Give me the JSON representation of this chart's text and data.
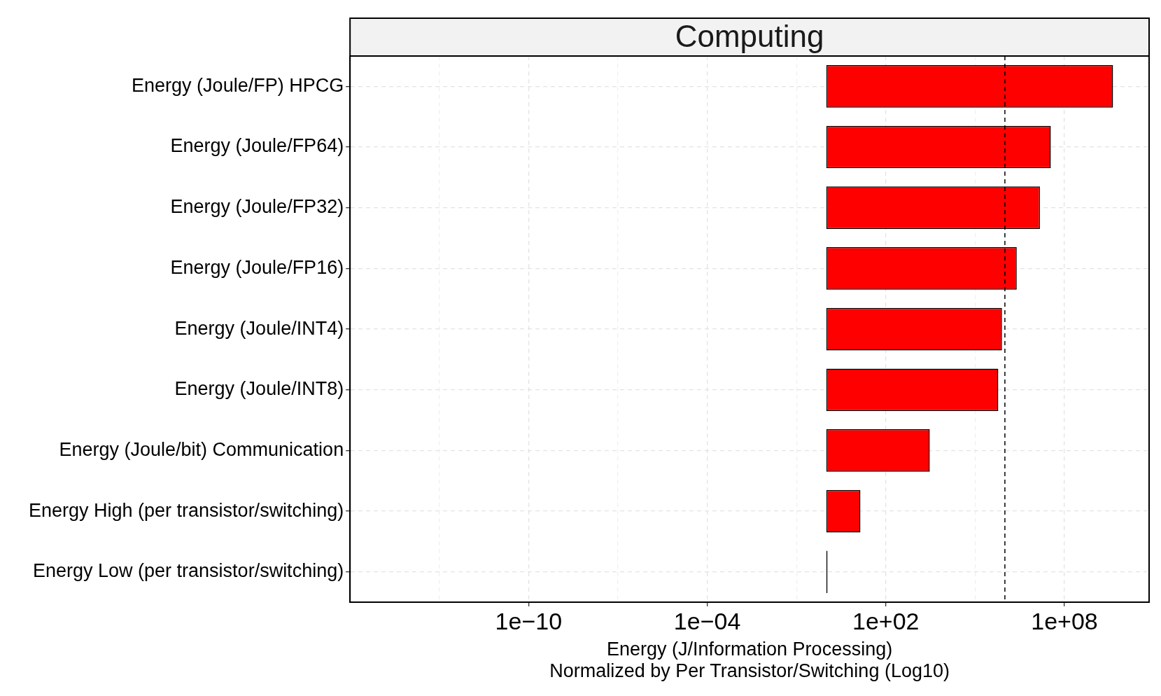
{
  "chart_data": {
    "type": "bar",
    "orientation": "horizontal",
    "title": "Computing",
    "xlabel": "Energy (J/Information Processing)\nNormalized by Per Transistor/Switching (Log10)",
    "categories": [
      "Energy (Joule/FP) HPCG",
      "Energy (Joule/FP64)",
      "Energy (Joule/FP32)",
      "Energy (Joule/FP16)",
      "Energy (Joule/INT4)",
      "Energy (Joule/INT8)",
      "Energy (Joule/bit) Communication",
      "Energy High (per transistor/switching)",
      "Energy Low (per transistor/switching)"
    ],
    "values": [
      4300000000.0,
      35000000.0,
      15000000.0,
      2500000.0,
      800000.0,
      600000.0,
      3000.0,
      13,
      0.1
    ],
    "base": [
      1,
      1,
      1,
      1,
      1,
      1,
      1,
      1,
      1
    ],
    "colors": [
      "#ff0000",
      "#ff0000",
      "#ff0000",
      "#ff0000",
      "#ff0000",
      "#ff0000",
      "#ff0000",
      "#ff0000",
      "#000000"
    ],
    "log": "x",
    "xlim": [
      1e-16,
      70000000000.0
    ],
    "xticks": [
      {
        "value": 1e-13,
        "label": null
      },
      {
        "value": 1e-10,
        "label": "1e−10"
      },
      {
        "value": 1e-07,
        "label": null
      },
      {
        "value": 0.0001,
        "label": "1e−04"
      },
      {
        "value": 0.1,
        "label": null
      },
      {
        "value": 100,
        "label": "1e+02"
      },
      {
        "value": 100000.0,
        "label": null
      },
      {
        "value": 100000000.0,
        "label": "1e+08"
      }
    ],
    "ref_lines": [
      {
        "axis": "x",
        "value": 1000000.0,
        "line_style": "dashed",
        "color": "#000000"
      }
    ],
    "grid": true,
    "legend": false
  }
}
